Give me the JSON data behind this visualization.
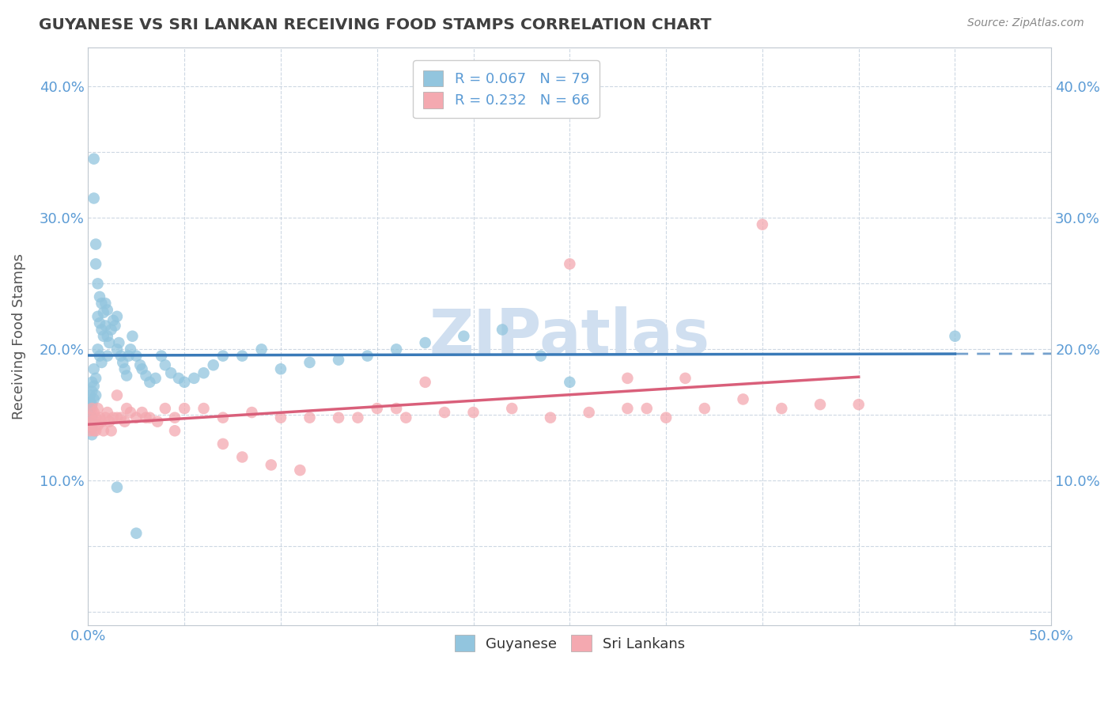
{
  "title": "GUYANESE VS SRI LANKAN RECEIVING FOOD STAMPS CORRELATION CHART",
  "source": "Source: ZipAtlas.com",
  "ylabel": "Receiving Food Stamps",
  "xlim": [
    0.0,
    0.5
  ],
  "ylim": [
    -0.01,
    0.43
  ],
  "xtick_positions": [
    0.0,
    0.05,
    0.1,
    0.15,
    0.2,
    0.25,
    0.3,
    0.35,
    0.4,
    0.45,
    0.5
  ],
  "ytick_positions": [
    0.0,
    0.05,
    0.1,
    0.15,
    0.2,
    0.25,
    0.3,
    0.35,
    0.4
  ],
  "xtick_labels": [
    "0.0%",
    "",
    "",
    "",
    "",
    "",
    "",
    "",
    "",
    "",
    "50.0%"
  ],
  "ytick_labels": [
    "",
    "",
    "10.0%",
    "",
    "20.0%",
    "",
    "30.0%",
    "",
    "40.0%"
  ],
  "guyanese_R": "0.067",
  "guyanese_N": "79",
  "srilankan_R": "0.232",
  "srilankan_N": "66",
  "guyanese_color": "#92c5de",
  "srilankan_color": "#f4a9b0",
  "guyanese_line_color": "#3a7ab8",
  "srilankan_line_color": "#d95f7a",
  "watermark_color": "#d0dff0",
  "background_color": "#ffffff",
  "grid_color": "#c8d4e0",
  "tick_color": "#5b9bd5",
  "guy_x": [
    0.001,
    0.001,
    0.001,
    0.001,
    0.002,
    0.002,
    0.002,
    0.002,
    0.002,
    0.002,
    0.003,
    0.003,
    0.003,
    0.003,
    0.003,
    0.004,
    0.004,
    0.004,
    0.004,
    0.005,
    0.005,
    0.005,
    0.006,
    0.006,
    0.006,
    0.007,
    0.007,
    0.007,
    0.008,
    0.008,
    0.009,
    0.009,
    0.01,
    0.01,
    0.01,
    0.011,
    0.012,
    0.013,
    0.014,
    0.015,
    0.015,
    0.016,
    0.017,
    0.018,
    0.019,
    0.02,
    0.021,
    0.022,
    0.023,
    0.025,
    0.027,
    0.028,
    0.03,
    0.032,
    0.035,
    0.038,
    0.04,
    0.043,
    0.047,
    0.05,
    0.055,
    0.06,
    0.065,
    0.07,
    0.08,
    0.09,
    0.1,
    0.115,
    0.13,
    0.145,
    0.16,
    0.175,
    0.195,
    0.215,
    0.235,
    0.25,
    0.015,
    0.025,
    0.45
  ],
  "guy_y": [
    0.165,
    0.16,
    0.155,
    0.15,
    0.175,
    0.168,
    0.158,
    0.148,
    0.14,
    0.135,
    0.345,
    0.315,
    0.185,
    0.172,
    0.162,
    0.28,
    0.265,
    0.178,
    0.165,
    0.25,
    0.225,
    0.2,
    0.24,
    0.22,
    0.195,
    0.235,
    0.215,
    0.19,
    0.228,
    0.21,
    0.235,
    0.218,
    0.23,
    0.21,
    0.195,
    0.205,
    0.215,
    0.222,
    0.218,
    0.225,
    0.2,
    0.205,
    0.195,
    0.19,
    0.185,
    0.18,
    0.195,
    0.2,
    0.21,
    0.195,
    0.188,
    0.185,
    0.18,
    0.175,
    0.178,
    0.195,
    0.188,
    0.182,
    0.178,
    0.175,
    0.178,
    0.182,
    0.188,
    0.195,
    0.195,
    0.2,
    0.185,
    0.19,
    0.192,
    0.195,
    0.2,
    0.205,
    0.21,
    0.215,
    0.195,
    0.175,
    0.095,
    0.06,
    0.21
  ],
  "sri_x": [
    0.001,
    0.001,
    0.001,
    0.002,
    0.002,
    0.003,
    0.003,
    0.004,
    0.004,
    0.005,
    0.005,
    0.006,
    0.007,
    0.008,
    0.009,
    0.01,
    0.011,
    0.012,
    0.013,
    0.015,
    0.017,
    0.019,
    0.022,
    0.025,
    0.028,
    0.032,
    0.036,
    0.04,
    0.045,
    0.05,
    0.06,
    0.07,
    0.085,
    0.1,
    0.115,
    0.13,
    0.15,
    0.165,
    0.185,
    0.2,
    0.22,
    0.24,
    0.26,
    0.28,
    0.3,
    0.32,
    0.34,
    0.36,
    0.38,
    0.4,
    0.015,
    0.02,
    0.03,
    0.045,
    0.07,
    0.08,
    0.095,
    0.11,
    0.175,
    0.25,
    0.29,
    0.31,
    0.35,
    0.28,
    0.16,
    0.14
  ],
  "sri_y": [
    0.148,
    0.142,
    0.138,
    0.155,
    0.145,
    0.152,
    0.138,
    0.148,
    0.138,
    0.155,
    0.142,
    0.148,
    0.145,
    0.138,
    0.148,
    0.152,
    0.145,
    0.138,
    0.148,
    0.148,
    0.148,
    0.145,
    0.152,
    0.148,
    0.152,
    0.148,
    0.145,
    0.155,
    0.148,
    0.155,
    0.155,
    0.148,
    0.152,
    0.148,
    0.148,
    0.148,
    0.155,
    0.148,
    0.152,
    0.152,
    0.155,
    0.148,
    0.152,
    0.155,
    0.148,
    0.155,
    0.162,
    0.155,
    0.158,
    0.158,
    0.165,
    0.155,
    0.148,
    0.138,
    0.128,
    0.118,
    0.112,
    0.108,
    0.175,
    0.265,
    0.155,
    0.178,
    0.295,
    0.178,
    0.155,
    0.148
  ]
}
